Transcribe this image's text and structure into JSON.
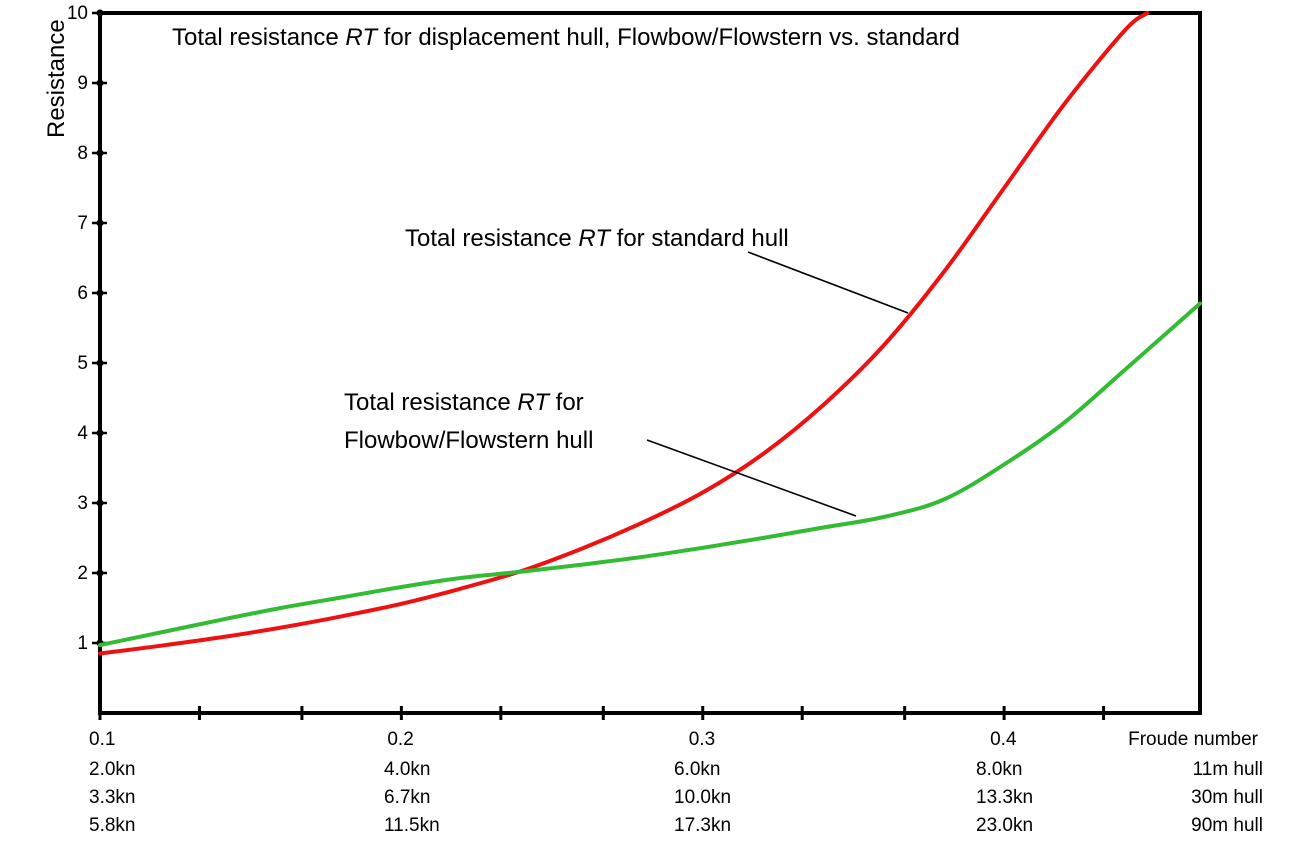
{
  "chart_data": {
    "type": "line",
    "title": {
      "prefix": "Total resistance ",
      "symbol": "RT",
      "suffix": " for displacement hull, Flowbow/Flowstern vs. standard"
    },
    "ylabel": "Resistance",
    "xlabel": "Froude number",
    "xlim": [
      0.1,
      0.465
    ],
    "ylim": [
      0,
      10
    ],
    "y_ticks": [
      1,
      2,
      3,
      4,
      5,
      6,
      7,
      8,
      9,
      10
    ],
    "x_ticks": [
      0.1,
      0.2,
      0.3,
      0.4
    ],
    "x_minor_ticks": [
      0.133,
      0.167,
      0.233,
      0.267,
      0.333,
      0.367,
      0.433
    ],
    "x_tick_labels": [
      "0.1",
      "0.2",
      "0.3",
      "0.4"
    ],
    "speed_rows": [
      {
        "label": "11m hull",
        "values": [
          "2.0kn",
          "4.0kn",
          "6.0kn",
          "8.0kn"
        ]
      },
      {
        "label": "30m  hull",
        "values": [
          "3.3kn",
          "6.7kn",
          "10.0kn",
          "13.3kn"
        ]
      },
      {
        "label": "90m  hull",
        "values": [
          "5.8kn",
          "11.5kn",
          "17.3kn",
          "23.0kn"
        ]
      }
    ],
    "grid": false,
    "series": [
      {
        "name": "Total resistance RT for standard hull",
        "color": "#ee1111",
        "x": [
          0.1,
          0.12,
          0.14,
          0.16,
          0.18,
          0.2,
          0.22,
          0.24,
          0.26,
          0.28,
          0.3,
          0.32,
          0.34,
          0.36,
          0.38,
          0.4,
          0.42,
          0.44,
          0.4475
        ],
        "y": [
          0.85,
          0.96,
          1.08,
          1.22,
          1.38,
          1.56,
          1.78,
          2.03,
          2.35,
          2.72,
          3.15,
          3.7,
          4.4,
          5.25,
          6.3,
          7.5,
          8.7,
          9.75,
          10.0
        ]
      },
      {
        "name": "Total resistance RT for Flowbow/Flowstern hull",
        "color": "#33bb33",
        "x": [
          0.1,
          0.12,
          0.14,
          0.16,
          0.18,
          0.2,
          0.22,
          0.24,
          0.26,
          0.28,
          0.3,
          0.32,
          0.34,
          0.36,
          0.38,
          0.4,
          0.42,
          0.44,
          0.465
        ],
        "y": [
          0.97,
          1.15,
          1.33,
          1.5,
          1.65,
          1.8,
          1.93,
          2.02,
          2.12,
          2.23,
          2.36,
          2.5,
          2.65,
          2.8,
          3.05,
          3.55,
          4.15,
          4.9,
          5.85
        ]
      }
    ],
    "annotations": [
      {
        "prefix": "Total resistance ",
        "symbol": "RT",
        "suffix": " for standard hull"
      },
      {
        "prefix": "Total resistance ",
        "symbol": "RT",
        "suffix": " for",
        "line2": "Flowbow/Flowstern hull"
      }
    ]
  }
}
